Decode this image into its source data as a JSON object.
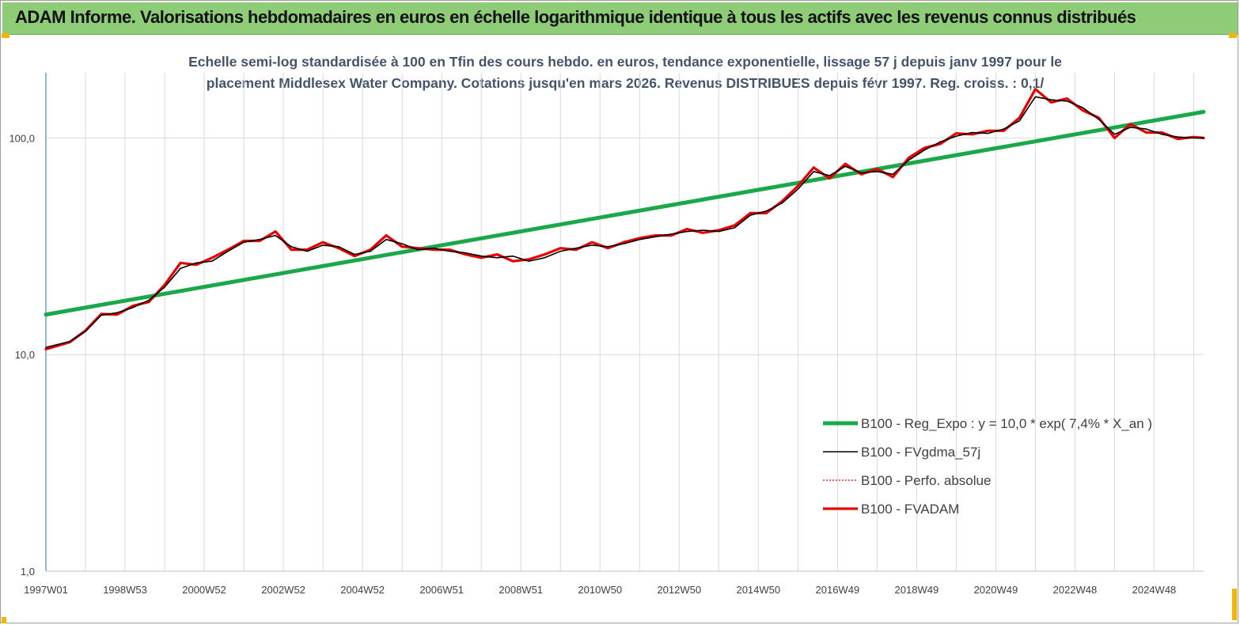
{
  "banner": {
    "title": "ADAM Informe. Valorisations hebdomadaires en euros en échelle logarithmique identique à tous les actifs avec les revenus connus distribués"
  },
  "colors": {
    "banner_bg": "#8fcc78",
    "trend": "#1ba84a",
    "smooth": "#000000",
    "perf": "#e00000",
    "fvadam": "#e60000",
    "grid": "#d9d9d9",
    "axis": "#4a86c8"
  },
  "chart_data": {
    "type": "line",
    "title": "Echelle semi-log standardisée à 100 en Tfin des cours hebdo. en euros, tendance exponentielle, lissage 57 j depuis janv 1997 pour le placement Middlesex Water Company. Cotations jusqu'en mars 2026. Revenus DISTRIBUES depuis févr 1997. Reg. croiss. : 0,1/",
    "title_lines": [
      "Echelle semi-log standardisée à 100 en Tfin des cours hebdo. en euros, tendance exponentielle, lissage 57 j depuis janv 1997 pour le",
      "placement Middlesex Water Company. Cotations jusqu'en mars 2026. Revenus DISTRIBUES depuis févr 1997. Reg. croiss. : 0,1/"
    ],
    "y_scale": "log",
    "ylim": [
      1,
      200
    ],
    "y_ticks": [
      {
        "value": 1,
        "label": "1,0"
      },
      {
        "value": 10,
        "label": "10,0"
      },
      {
        "value": 100,
        "label": "100,0"
      }
    ],
    "xlim": [
      1997.0,
      2026.25
    ],
    "x_ticks": [
      {
        "t": 1997.0,
        "label": "1997W01"
      },
      {
        "t": 1999.0,
        "label": "1998W53"
      },
      {
        "t": 2001.0,
        "label": "2000W52"
      },
      {
        "t": 2003.0,
        "label": "2002W52"
      },
      {
        "t": 2005.0,
        "label": "2004W52"
      },
      {
        "t": 2007.0,
        "label": "2006W51"
      },
      {
        "t": 2009.0,
        "label": "2008W51"
      },
      {
        "t": 2011.0,
        "label": "2010W50"
      },
      {
        "t": 2013.0,
        "label": "2012W50"
      },
      {
        "t": 2015.0,
        "label": "2014W50"
      },
      {
        "t": 2017.0,
        "label": "2016W49"
      },
      {
        "t": 2019.0,
        "label": "2018W49"
      },
      {
        "t": 2021.0,
        "label": "2020W49"
      },
      {
        "t": 2023.0,
        "label": "2022W48"
      },
      {
        "t": 2025.0,
        "label": "2024W48"
      }
    ],
    "x_minor_grid": [
      1998.0,
      2000.0,
      2002.0,
      2004.0,
      2006.0,
      2008.0,
      2010.0,
      2012.0,
      2014.0,
      2016.0,
      2018.0,
      2020.0,
      2022.0,
      2024.0,
      2026.0
    ],
    "legend_position": "bottom-right",
    "series": [
      {
        "key": "trend",
        "name": "B100 - Reg_Expo : y = 10,0 * exp( 7,4% * X_an )",
        "style": "thick",
        "points": [
          [
            1997.0,
            15.3
          ],
          [
            2026.25,
            132
          ]
        ]
      },
      {
        "key": "smooth",
        "name": "B100 - FVgdma_57j",
        "style": "thin",
        "points": [
          [
            1997.0,
            10.8
          ],
          [
            1997.6,
            11.5
          ],
          [
            1998.0,
            12.8
          ],
          [
            1998.4,
            15.2
          ],
          [
            1998.8,
            15.6
          ],
          [
            1999.2,
            16.5
          ],
          [
            1999.6,
            17.8
          ],
          [
            2000.0,
            20.5
          ],
          [
            2000.4,
            25
          ],
          [
            2000.8,
            26.5
          ],
          [
            2001.2,
            27
          ],
          [
            2001.6,
            30
          ],
          [
            2002.0,
            33
          ],
          [
            2002.4,
            34
          ],
          [
            2002.8,
            35.5
          ],
          [
            2003.2,
            31.5
          ],
          [
            2003.6,
            30
          ],
          [
            2004.0,
            32
          ],
          [
            2004.4,
            31.5
          ],
          [
            2004.8,
            29
          ],
          [
            2005.2,
            30
          ],
          [
            2005.6,
            34
          ],
          [
            2006.0,
            32.5
          ],
          [
            2006.4,
            30.5
          ],
          [
            2006.8,
            31
          ],
          [
            2007.2,
            30
          ],
          [
            2007.6,
            29.5
          ],
          [
            2008.0,
            28.5
          ],
          [
            2008.4,
            28
          ],
          [
            2008.8,
            28.5
          ],
          [
            2009.2,
            27
          ],
          [
            2009.6,
            28
          ],
          [
            2010.0,
            30
          ],
          [
            2010.4,
            31
          ],
          [
            2010.8,
            32
          ],
          [
            2011.2,
            31.5
          ],
          [
            2011.6,
            32.5
          ],
          [
            2012.0,
            34
          ],
          [
            2012.4,
            35
          ],
          [
            2012.8,
            36
          ],
          [
            2013.2,
            37
          ],
          [
            2013.6,
            37.5
          ],
          [
            2014.0,
            37
          ],
          [
            2014.4,
            38.5
          ],
          [
            2014.8,
            44
          ],
          [
            2015.2,
            46
          ],
          [
            2015.6,
            50
          ],
          [
            2016.0,
            58
          ],
          [
            2016.4,
            70
          ],
          [
            2016.8,
            67
          ],
          [
            2017.2,
            74
          ],
          [
            2017.6,
            69
          ],
          [
            2018.0,
            70
          ],
          [
            2018.4,
            68
          ],
          [
            2018.8,
            79
          ],
          [
            2019.2,
            88
          ],
          [
            2019.6,
            96
          ],
          [
            2020.0,
            102
          ],
          [
            2020.4,
            106
          ],
          [
            2020.8,
            105
          ],
          [
            2021.2,
            110
          ],
          [
            2021.6,
            120
          ],
          [
            2022.0,
            155
          ],
          [
            2022.4,
            150
          ],
          [
            2022.8,
            148
          ],
          [
            2023.2,
            138
          ],
          [
            2023.6,
            122
          ],
          [
            2024.0,
            104
          ],
          [
            2024.4,
            112
          ],
          [
            2024.8,
            110
          ],
          [
            2025.2,
            104
          ],
          [
            2025.6,
            101
          ],
          [
            2026.0,
            100
          ],
          [
            2026.25,
            100
          ]
        ]
      },
      {
        "key": "perf",
        "name": "B100 - Perfo. absolue",
        "style": "dotted",
        "points": [
          [
            1997.0,
            10.6
          ],
          [
            1997.6,
            11.4
          ],
          [
            1998.0,
            12.9
          ],
          [
            1998.4,
            15.4
          ],
          [
            1998.8,
            15.3
          ],
          [
            1999.2,
            16.8
          ],
          [
            1999.6,
            17.5
          ],
          [
            2000.0,
            21
          ],
          [
            2000.4,
            26.5
          ],
          [
            2000.8,
            26
          ],
          [
            2001.2,
            28
          ],
          [
            2001.6,
            30.5
          ],
          [
            2002.0,
            33.5
          ],
          [
            2002.4,
            33.5
          ],
          [
            2002.8,
            37
          ],
          [
            2003.2,
            30.5
          ],
          [
            2003.6,
            30.5
          ],
          [
            2004.0,
            33
          ],
          [
            2004.4,
            31
          ],
          [
            2004.8,
            28.5
          ],
          [
            2005.2,
            30.5
          ],
          [
            2005.6,
            35.5
          ],
          [
            2006.0,
            31.5
          ],
          [
            2006.4,
            31
          ],
          [
            2006.8,
            30.5
          ],
          [
            2007.2,
            30.5
          ],
          [
            2007.6,
            29
          ],
          [
            2008.0,
            28
          ],
          [
            2008.4,
            29
          ],
          [
            2008.8,
            27
          ],
          [
            2009.2,
            27.5
          ],
          [
            2009.6,
            29
          ],
          [
            2010.0,
            31
          ],
          [
            2010.4,
            30.5
          ],
          [
            2010.8,
            33
          ],
          [
            2011.2,
            31
          ],
          [
            2011.6,
            33
          ],
          [
            2012.0,
            34.5
          ],
          [
            2012.4,
            35.5
          ],
          [
            2012.8,
            35.5
          ],
          [
            2013.2,
            38
          ],
          [
            2013.6,
            36.5
          ],
          [
            2014.0,
            37.5
          ],
          [
            2014.4,
            39.5
          ],
          [
            2014.8,
            45
          ],
          [
            2015.2,
            45
          ],
          [
            2015.6,
            51
          ],
          [
            2016.0,
            60
          ],
          [
            2016.4,
            73
          ],
          [
            2016.8,
            65
          ],
          [
            2017.2,
            76
          ],
          [
            2017.6,
            68
          ],
          [
            2018.0,
            72
          ],
          [
            2018.4,
            66
          ],
          [
            2018.8,
            81
          ],
          [
            2019.2,
            90
          ],
          [
            2019.6,
            94
          ],
          [
            2020.0,
            105
          ],
          [
            2020.4,
            104
          ],
          [
            2020.8,
            108
          ],
          [
            2021.2,
            108
          ],
          [
            2021.6,
            124
          ],
          [
            2022.0,
            168
          ],
          [
            2022.4,
            146
          ],
          [
            2022.8,
            152
          ],
          [
            2023.2,
            134
          ],
          [
            2023.6,
            124
          ],
          [
            2024.0,
            100
          ],
          [
            2024.4,
            116
          ],
          [
            2024.8,
            106
          ],
          [
            2025.2,
            106
          ],
          [
            2025.6,
            99
          ],
          [
            2026.0,
            101
          ],
          [
            2026.25,
            100
          ]
        ]
      },
      {
        "key": "fvadam",
        "name": "B100 - FVADAM",
        "style": "thick-red",
        "points": [
          [
            1997.0,
            10.6
          ],
          [
            1997.6,
            11.4
          ],
          [
            1998.0,
            12.9
          ],
          [
            1998.4,
            15.4
          ],
          [
            1998.8,
            15.3
          ],
          [
            1999.2,
            16.8
          ],
          [
            1999.6,
            17.5
          ],
          [
            2000.0,
            21
          ],
          [
            2000.4,
            26.5
          ],
          [
            2000.8,
            26
          ],
          [
            2001.2,
            28
          ],
          [
            2001.6,
            30.5
          ],
          [
            2002.0,
            33.5
          ],
          [
            2002.4,
            33.5
          ],
          [
            2002.8,
            37
          ],
          [
            2003.2,
            30.5
          ],
          [
            2003.6,
            30.5
          ],
          [
            2004.0,
            33
          ],
          [
            2004.4,
            31
          ],
          [
            2004.8,
            28.5
          ],
          [
            2005.2,
            30.5
          ],
          [
            2005.6,
            35.5
          ],
          [
            2006.0,
            31.5
          ],
          [
            2006.4,
            31
          ],
          [
            2006.8,
            30.5
          ],
          [
            2007.2,
            30.5
          ],
          [
            2007.6,
            29
          ],
          [
            2008.0,
            28
          ],
          [
            2008.4,
            29
          ],
          [
            2008.8,
            27
          ],
          [
            2009.2,
            27.5
          ],
          [
            2009.6,
            29
          ],
          [
            2010.0,
            31
          ],
          [
            2010.4,
            30.5
          ],
          [
            2010.8,
            33
          ],
          [
            2011.2,
            31
          ],
          [
            2011.6,
            33
          ],
          [
            2012.0,
            34.5
          ],
          [
            2012.4,
            35.5
          ],
          [
            2012.8,
            35.5
          ],
          [
            2013.2,
            38
          ],
          [
            2013.6,
            36.5
          ],
          [
            2014.0,
            37.5
          ],
          [
            2014.4,
            39.5
          ],
          [
            2014.8,
            45
          ],
          [
            2015.2,
            45
          ],
          [
            2015.6,
            51
          ],
          [
            2016.0,
            60
          ],
          [
            2016.4,
            73
          ],
          [
            2016.8,
            65
          ],
          [
            2017.2,
            76
          ],
          [
            2017.6,
            68
          ],
          [
            2018.0,
            72
          ],
          [
            2018.4,
            66
          ],
          [
            2018.8,
            81
          ],
          [
            2019.2,
            90
          ],
          [
            2019.6,
            94
          ],
          [
            2020.0,
            105
          ],
          [
            2020.4,
            104
          ],
          [
            2020.8,
            108
          ],
          [
            2021.2,
            108
          ],
          [
            2021.6,
            124
          ],
          [
            2022.0,
            168
          ],
          [
            2022.4,
            146
          ],
          [
            2022.8,
            152
          ],
          [
            2023.2,
            134
          ],
          [
            2023.6,
            124
          ],
          [
            2024.0,
            100
          ],
          [
            2024.4,
            116
          ],
          [
            2024.8,
            106
          ],
          [
            2025.2,
            106
          ],
          [
            2025.6,
            99
          ],
          [
            2026.0,
            101
          ],
          [
            2026.25,
            100
          ]
        ]
      }
    ]
  }
}
